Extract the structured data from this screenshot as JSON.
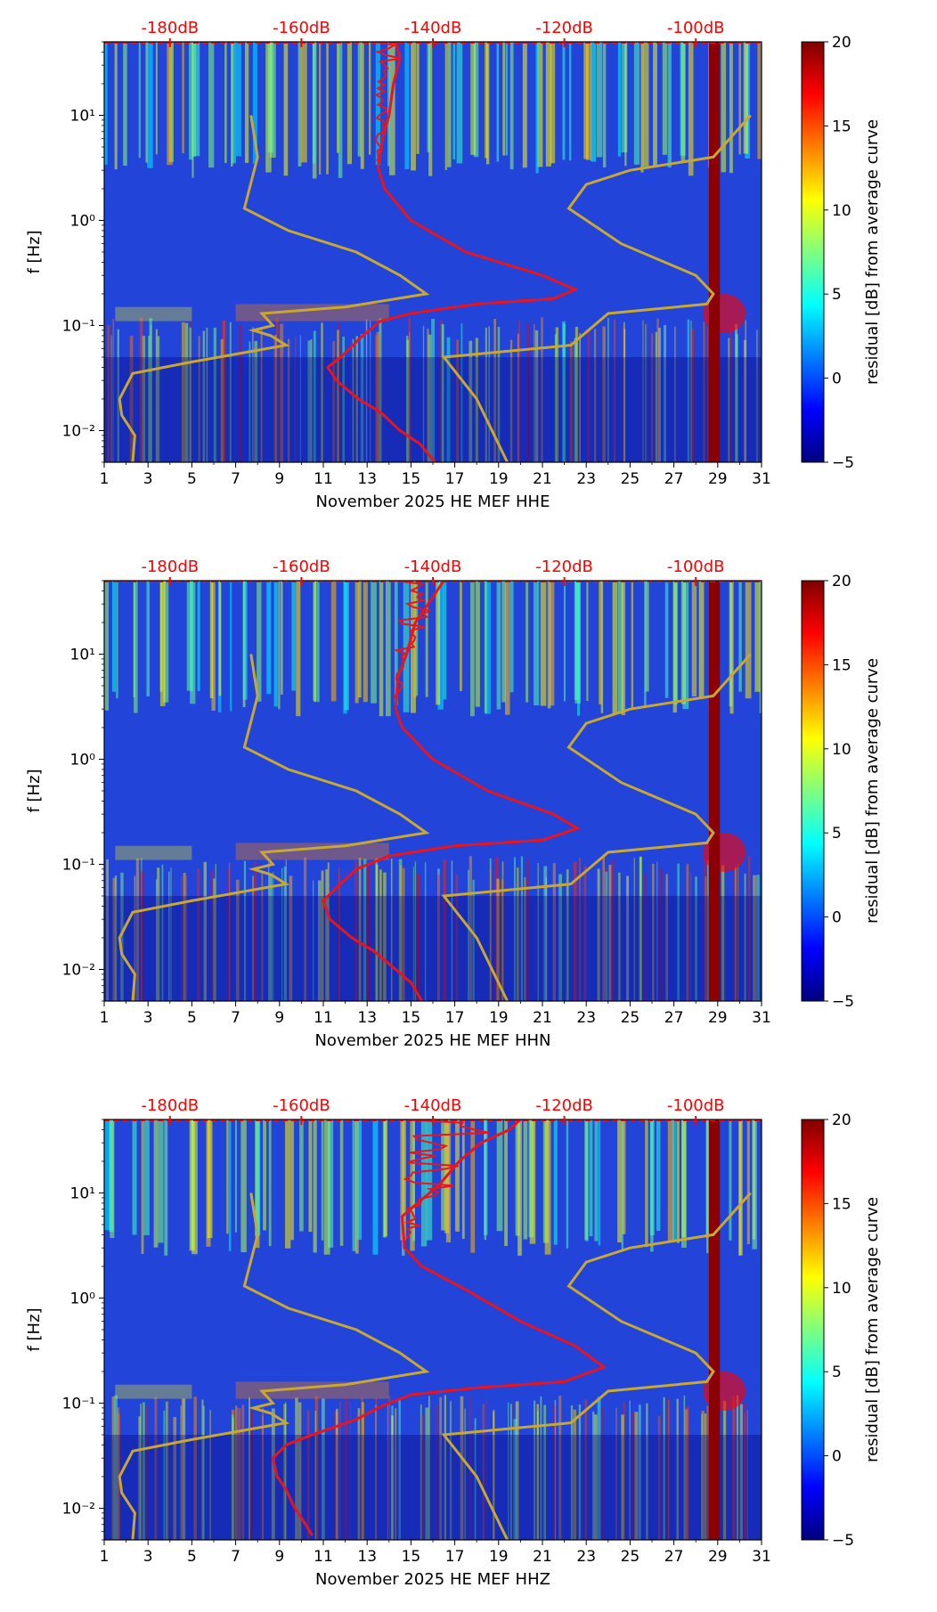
{
  "colors": {
    "jet": [
      "#00007f",
      "#0000ff",
      "#007fff",
      "#00ffff",
      "#7fff7f",
      "#ffff00",
      "#ff7f00",
      "#ff0000",
      "#7f0000"
    ],
    "background_field": "#2244d8",
    "red_curve": "#e8141e",
    "yellow_curve": "#c8a832",
    "event_band": "#8b0000",
    "db_text": "#ff0000"
  },
  "chart_data": [
    {
      "type": "heatmap",
      "title": "",
      "xlabel": "November 2025 HE MEF  HHE",
      "ylabel": "f [Hz]",
      "xlim": [
        1,
        31
      ],
      "ylim": [
        0.005,
        50
      ],
      "yscale": "log",
      "xticks": [
        "1",
        "3",
        "5",
        "7",
        "9",
        "11",
        "13",
        "15",
        "17",
        "19",
        "21",
        "23",
        "25",
        "27",
        "29",
        "31"
      ],
      "yticks": [
        {
          "v": 0.01,
          "label": "10⁻²"
        },
        {
          "v": 0.1,
          "label": "10⁻¹"
        },
        {
          "v": 1,
          "label": "10⁰"
        },
        {
          "v": 10,
          "label": "10¹"
        }
      ],
      "top_labels": [
        {
          "x": 4,
          "label": "-180dB"
        },
        {
          "x": 10,
          "label": "-160dB"
        },
        {
          "x": 16,
          "label": "-140dB"
        },
        {
          "x": 22,
          "label": "-120dB"
        },
        {
          "x": 28,
          "label": "-100dB"
        }
      ],
      "colorbar": {
        "label": "residual [dB] from average curve",
        "range": [
          -5,
          20
        ],
        "ticks": [
          "20",
          "15",
          "10",
          "5",
          "0",
          "−5"
        ]
      },
      "event_band": [
        28.6,
        29.1
      ],
      "red_curve": [
        [
          14.3,
          50
        ],
        [
          14.5,
          35
        ],
        [
          14.2,
          20
        ],
        [
          14,
          10
        ],
        [
          13.7,
          6
        ],
        [
          13.5,
          3.2
        ],
        [
          13.8,
          2
        ],
        [
          15,
          1
        ],
        [
          17.5,
          0.5
        ],
        [
          21,
          0.3
        ],
        [
          22.5,
          0.22
        ],
        [
          21.5,
          0.18
        ],
        [
          18,
          0.16
        ],
        [
          15,
          0.13
        ],
        [
          13.6,
          0.11
        ],
        [
          12.8,
          0.08
        ],
        [
          11.8,
          0.05
        ],
        [
          11.2,
          0.04
        ],
        [
          11.6,
          0.03
        ],
        [
          12.6,
          0.02
        ],
        [
          13.6,
          0.015
        ],
        [
          14.5,
          0.01
        ],
        [
          15.4,
          0.0075
        ],
        [
          16.1,
          0.005
        ]
      ],
      "red_scribble": [
        13.4,
        14.8
      ],
      "yellow_left": [
        [
          7.7,
          10
        ],
        [
          8,
          4
        ],
        [
          7.4,
          1.3
        ],
        [
          9.4,
          0.8
        ],
        [
          12.5,
          0.5
        ],
        [
          14.5,
          0.3
        ],
        [
          15.7,
          0.2
        ],
        [
          12,
          0.15
        ],
        [
          8.2,
          0.13
        ],
        [
          8.7,
          0.1
        ],
        [
          7.8,
          0.09
        ],
        [
          8.6,
          0.08
        ],
        [
          9.3,
          0.065
        ],
        [
          5,
          0.045
        ],
        [
          2.3,
          0.035
        ],
        [
          1.7,
          0.02
        ],
        [
          1.8,
          0.014
        ],
        [
          2.4,
          0.009
        ],
        [
          2.3,
          0.005
        ]
      ],
      "yellow_right": [
        [
          30.5,
          10
        ],
        [
          28.8,
          4
        ],
        [
          25,
          3
        ],
        [
          23,
          2.2
        ],
        [
          22.2,
          1.3
        ],
        [
          24.6,
          0.6
        ],
        [
          28,
          0.3
        ],
        [
          28.8,
          0.2
        ],
        [
          28.5,
          0.16
        ],
        [
          24,
          0.13
        ],
        [
          22.3,
          0.065
        ],
        [
          16.5,
          0.05
        ],
        [
          18,
          0.02
        ],
        [
          19.4,
          0.005
        ]
      ]
    },
    {
      "type": "heatmap",
      "title": "",
      "xlabel": "November 2025 HE MEF  HHN",
      "ylabel": "f [Hz]",
      "xlim": [
        1,
        31
      ],
      "ylim": [
        0.005,
        50
      ],
      "yscale": "log",
      "xticks": [
        "1",
        "3",
        "5",
        "7",
        "9",
        "11",
        "13",
        "15",
        "17",
        "19",
        "21",
        "23",
        "25",
        "27",
        "29",
        "31"
      ],
      "yticks": [
        {
          "v": 0.01,
          "label": "10⁻²"
        },
        {
          "v": 0.1,
          "label": "10⁻¹"
        },
        {
          "v": 1,
          "label": "10⁰"
        },
        {
          "v": 10,
          "label": "10¹"
        }
      ],
      "top_labels": [
        {
          "x": 4,
          "label": "-180dB"
        },
        {
          "x": 10,
          "label": "-160dB"
        },
        {
          "x": 16,
          "label": "-140dB"
        },
        {
          "x": 22,
          "label": "-120dB"
        },
        {
          "x": 28,
          "label": "-100dB"
        }
      ],
      "colorbar": {
        "label": "residual [dB] from average curve",
        "range": [
          -5,
          20
        ],
        "ticks": [
          "20",
          "15",
          "10",
          "5",
          "0",
          "−5"
        ]
      },
      "event_band": [
        28.6,
        29.1
      ],
      "red_curve": [
        [
          16.5,
          50
        ],
        [
          16,
          35
        ],
        [
          15.2,
          20
        ],
        [
          14.8,
          10
        ],
        [
          14.4,
          6
        ],
        [
          14.3,
          3
        ],
        [
          14.6,
          2
        ],
        [
          16,
          1
        ],
        [
          18.5,
          0.5
        ],
        [
          21.5,
          0.3
        ],
        [
          22.6,
          0.22
        ],
        [
          21,
          0.17
        ],
        [
          17,
          0.15
        ],
        [
          14,
          0.12
        ],
        [
          12.5,
          0.09
        ],
        [
          11.6,
          0.06
        ],
        [
          11,
          0.045
        ],
        [
          11.3,
          0.03
        ],
        [
          12.3,
          0.02
        ],
        [
          13.3,
          0.015
        ],
        [
          14.3,
          0.01
        ],
        [
          15,
          0.0075
        ],
        [
          15.5,
          0.005
        ]
      ],
      "red_scribble": [
        14.2,
        16.6
      ],
      "yellow_left": [
        [
          7.7,
          10
        ],
        [
          8,
          4
        ],
        [
          7.4,
          1.3
        ],
        [
          9.4,
          0.8
        ],
        [
          12.5,
          0.5
        ],
        [
          14.5,
          0.3
        ],
        [
          15.7,
          0.2
        ],
        [
          12,
          0.15
        ],
        [
          8.2,
          0.13
        ],
        [
          8.7,
          0.1
        ],
        [
          7.8,
          0.09
        ],
        [
          8.6,
          0.08
        ],
        [
          9.3,
          0.065
        ],
        [
          5,
          0.045
        ],
        [
          2.3,
          0.035
        ],
        [
          1.7,
          0.02
        ],
        [
          1.8,
          0.014
        ],
        [
          2.4,
          0.009
        ],
        [
          2.3,
          0.005
        ]
      ],
      "yellow_right": [
        [
          30.5,
          10
        ],
        [
          28.8,
          4
        ],
        [
          25,
          3
        ],
        [
          23,
          2.2
        ],
        [
          22.2,
          1.3
        ],
        [
          24.6,
          0.6
        ],
        [
          28,
          0.3
        ],
        [
          28.8,
          0.2
        ],
        [
          28.5,
          0.16
        ],
        [
          24,
          0.13
        ],
        [
          22.3,
          0.065
        ],
        [
          16.5,
          0.05
        ],
        [
          18,
          0.02
        ],
        [
          19.4,
          0.005
        ]
      ]
    },
    {
      "type": "heatmap",
      "title": "",
      "xlabel": "November 2025 HE MEF  HHZ",
      "ylabel": "f [Hz]",
      "xlim": [
        1,
        31
      ],
      "ylim": [
        0.005,
        50
      ],
      "yscale": "log",
      "xticks": [
        "1",
        "3",
        "5",
        "7",
        "9",
        "11",
        "13",
        "15",
        "17",
        "19",
        "21",
        "23",
        "25",
        "27",
        "29",
        "31"
      ],
      "yticks": [
        {
          "v": 0.01,
          "label": "10⁻²"
        },
        {
          "v": 0.1,
          "label": "10⁻¹"
        },
        {
          "v": 1,
          "label": "10⁰"
        },
        {
          "v": 10,
          "label": "10¹"
        }
      ],
      "top_labels": [
        {
          "x": 4,
          "label": "-180dB"
        },
        {
          "x": 10,
          "label": "-160dB"
        },
        {
          "x": 16,
          "label": "-140dB"
        },
        {
          "x": 22,
          "label": "-120dB"
        },
        {
          "x": 28,
          "label": "-100dB"
        }
      ],
      "colorbar": {
        "label": "residual [dB] from average curve",
        "range": [
          -5,
          20
        ],
        "ticks": [
          "20",
          "15",
          "10",
          "5",
          "0",
          "−5"
        ]
      },
      "event_band": [
        28.6,
        29.1
      ],
      "red_curve": [
        [
          20,
          50
        ],
        [
          19.5,
          40
        ],
        [
          18.2,
          30
        ],
        [
          17.2,
          20
        ],
        [
          16.3,
          12
        ],
        [
          15.3,
          8
        ],
        [
          14.6,
          6
        ],
        [
          14.7,
          3
        ],
        [
          15.5,
          2
        ],
        [
          17.5,
          1.2
        ],
        [
          20,
          0.6
        ],
        [
          22.5,
          0.35
        ],
        [
          23.8,
          0.22
        ],
        [
          22,
          0.16
        ],
        [
          18,
          0.14
        ],
        [
          15,
          0.12
        ],
        [
          14,
          0.1
        ],
        [
          13.5,
          0.09
        ],
        [
          12.5,
          0.07
        ],
        [
          10.5,
          0.05
        ],
        [
          9.3,
          0.04
        ],
        [
          8.7,
          0.03
        ],
        [
          8.9,
          0.02
        ],
        [
          9.3,
          0.015
        ],
        [
          9.7,
          0.01
        ],
        [
          10.1,
          0.0075
        ],
        [
          10.5,
          0.0055
        ]
      ],
      "red_scribble": [
        14.6,
        19.8
      ],
      "yellow_left": [
        [
          7.7,
          10
        ],
        [
          8,
          4
        ],
        [
          7.4,
          1.3
        ],
        [
          9.4,
          0.8
        ],
        [
          12.5,
          0.5
        ],
        [
          14.5,
          0.3
        ],
        [
          15.7,
          0.2
        ],
        [
          12,
          0.15
        ],
        [
          8.2,
          0.13
        ],
        [
          8.7,
          0.1
        ],
        [
          7.8,
          0.09
        ],
        [
          8.6,
          0.08
        ],
        [
          9.3,
          0.065
        ],
        [
          5,
          0.045
        ],
        [
          2.3,
          0.035
        ],
        [
          1.7,
          0.02
        ],
        [
          1.8,
          0.014
        ],
        [
          2.4,
          0.009
        ],
        [
          2.3,
          0.005
        ]
      ],
      "yellow_right": [
        [
          30.5,
          10
        ],
        [
          28.8,
          4
        ],
        [
          25,
          3
        ],
        [
          23,
          2.2
        ],
        [
          22.2,
          1.3
        ],
        [
          24.6,
          0.6
        ],
        [
          28,
          0.3
        ],
        [
          28.8,
          0.2
        ],
        [
          28.5,
          0.16
        ],
        [
          24,
          0.13
        ],
        [
          22.3,
          0.065
        ],
        [
          16.5,
          0.05
        ],
        [
          18,
          0.02
        ],
        [
          19.4,
          0.005
        ]
      ]
    }
  ]
}
